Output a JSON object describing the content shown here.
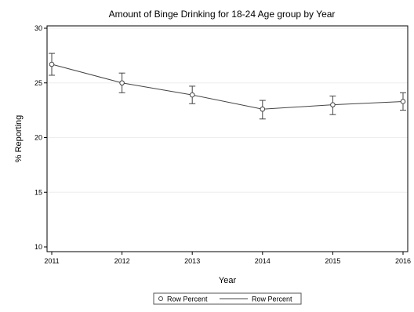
{
  "chart_data": {
    "type": "line",
    "title": "Amount of Binge Drinking for 18-24 Age group by Year",
    "xlabel": "Year",
    "ylabel": "% Reporting",
    "categories": [
      "2011",
      "2012",
      "2013",
      "2014",
      "2015",
      "2016"
    ],
    "ylim": [
      10,
      30
    ],
    "yticks": [
      10,
      15,
      20,
      25,
      30
    ],
    "grid": "horizontal",
    "legend_position": "bottom",
    "series": [
      {
        "name": "Row Percent",
        "values": [
          26.7,
          25.0,
          23.9,
          22.6,
          23.0,
          23.3
        ],
        "lower": [
          25.7,
          24.1,
          23.1,
          21.7,
          22.1,
          22.5
        ],
        "upper": [
          27.7,
          25.9,
          24.7,
          23.4,
          23.8,
          24.1
        ]
      }
    ],
    "legend_entries": [
      {
        "marker": "circle",
        "label": "Row Percent"
      },
      {
        "marker": "line",
        "label": "Row Percent"
      }
    ],
    "colors": {
      "line": "#444444",
      "marker": "#444444",
      "grid": "#eeeeee",
      "frame": "#000000"
    }
  }
}
